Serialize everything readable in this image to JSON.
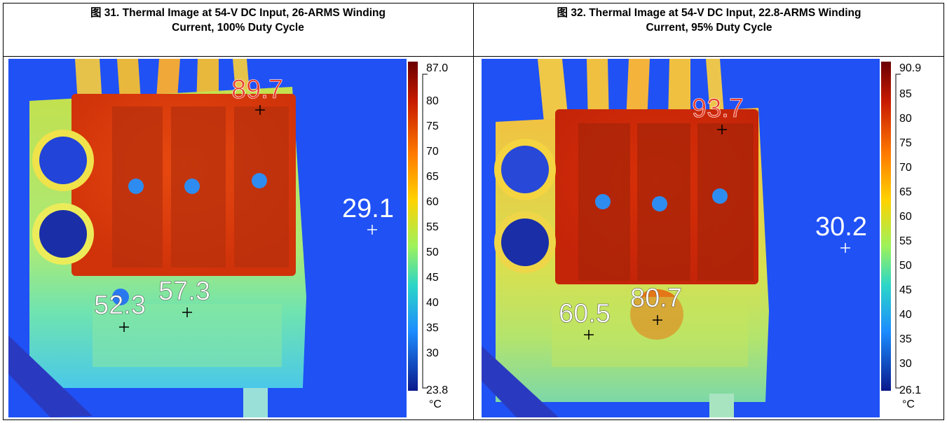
{
  "figures": [
    {
      "caption_line1": "图 31. Thermal Image at 54-V DC Input, 26-ARMS Winding",
      "caption_line2": "Current, 100% Duty Cycle",
      "scale_max": "87.0",
      "scale_min": "23.8",
      "scale_unit": "°C",
      "scale_ticks": [
        "80",
        "75",
        "70",
        "65",
        "60",
        "55",
        "50",
        "45",
        "40",
        "35",
        "30"
      ],
      "spots": [
        {
          "value": "89.7",
          "color": "#e8412c"
        },
        {
          "value": "29.1",
          "color": "#ffffff"
        },
        {
          "value": "57.3",
          "color": "#ffffff"
        },
        {
          "value": "52.3",
          "color": "#ffffff"
        }
      ]
    },
    {
      "caption_line1": "图 32. Thermal Image at 54-V DC Input, 22.8-ARMS Winding",
      "caption_line2": "Current, 95% Duty Cycle",
      "scale_max": "90.9",
      "scale_min": "26.1",
      "scale_unit": "°C",
      "scale_ticks": [
        "85",
        "80",
        "75",
        "70",
        "65",
        "60",
        "55",
        "50",
        "45",
        "40",
        "35",
        "30"
      ],
      "spots": [
        {
          "value": "93.7",
          "color": "#e8412c"
        },
        {
          "value": "30.2",
          "color": "#ffffff"
        },
        {
          "value": "80.7",
          "color": "#ffffff"
        },
        {
          "value": "60.5",
          "color": "#ffffff"
        }
      ]
    }
  ]
}
